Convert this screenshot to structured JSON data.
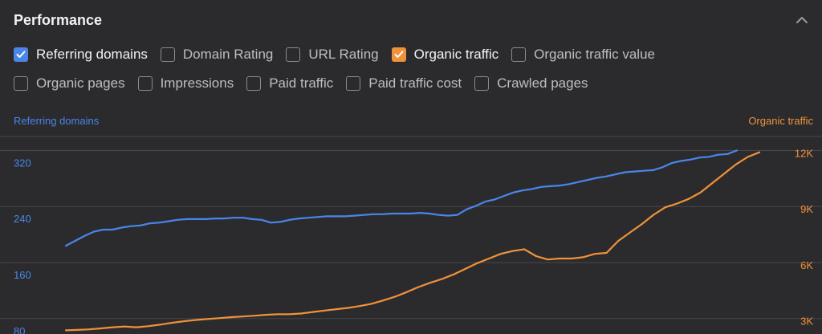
{
  "panel": {
    "title": "Performance"
  },
  "metrics_row1": [
    {
      "label": "Referring domains",
      "checked": true,
      "color": "#4a86e8"
    },
    {
      "label": "Domain Rating",
      "checked": false,
      "color": ""
    },
    {
      "label": "URL Rating",
      "checked": false,
      "color": ""
    },
    {
      "label": "Organic traffic",
      "checked": true,
      "color": "#f0923a"
    },
    {
      "label": "Organic traffic value",
      "checked": false,
      "color": ""
    }
  ],
  "metrics_row2": [
    {
      "label": "Organic pages",
      "checked": false,
      "color": ""
    },
    {
      "label": "Impressions",
      "checked": false,
      "color": ""
    },
    {
      "label": "Paid traffic",
      "checked": false,
      "color": ""
    },
    {
      "label": "Paid traffic cost",
      "checked": false,
      "color": ""
    },
    {
      "label": "Crawled pages",
      "checked": false,
      "color": ""
    }
  ],
  "icons": {
    "collapse": "chevron-up-icon",
    "check": "checkmark-icon"
  },
  "colors": {
    "referring_domains": "#4a86e8",
    "organic_traffic": "#f0923a",
    "grid": "#48484c",
    "background": "#2b2b2e"
  },
  "chart_data": {
    "type": "line",
    "left_axis": {
      "label": "Referring domains",
      "ticks": [
        "320",
        "240",
        "160",
        "80"
      ],
      "tick_values": [
        320,
        240,
        160,
        80
      ],
      "range": [
        58,
        340
      ]
    },
    "right_axis": {
      "label": "Organic traffic",
      "ticks": [
        "12K",
        "9K",
        "6K",
        "3K"
      ],
      "tick_values": [
        12000,
        9000,
        6000,
        3000
      ],
      "range": [
        2200,
        12800
      ]
    },
    "grid": true,
    "series": [
      {
        "name": "Referring domains",
        "axis": "left",
        "color": "#4a86e8",
        "values": [
          184,
          191,
          198,
          204,
          207,
          207,
          210,
          212,
          213,
          216,
          217,
          219,
          221,
          222,
          222,
          222,
          223,
          223,
          224,
          224,
          222,
          221,
          217,
          218,
          221,
          223,
          224,
          225,
          226,
          226,
          226,
          227,
          228,
          229,
          229,
          230,
          230,
          230,
          231,
          230,
          228,
          227,
          228,
          236,
          241,
          247,
          250,
          255,
          260,
          263,
          265,
          268,
          269,
          270,
          272,
          275,
          278,
          281,
          283,
          286,
          289,
          290,
          291,
          292,
          296,
          302,
          305,
          307,
          310,
          311,
          314,
          315,
          320
        ]
      },
      {
        "name": "Organic traffic",
        "axis": "right",
        "color": "#f0923a",
        "values": [
          2400,
          2420,
          2450,
          2500,
          2560,
          2600,
          2560,
          2620,
          2700,
          2800,
          2880,
          2950,
          3000,
          3050,
          3100,
          3140,
          3180,
          3230,
          3260,
          3260,
          3300,
          3380,
          3460,
          3530,
          3600,
          3700,
          3820,
          4000,
          4200,
          4450,
          4720,
          4950,
          5150,
          5400,
          5700,
          6000,
          6250,
          6500,
          6650,
          6750,
          6380,
          6200,
          6250,
          6250,
          6320,
          6500,
          6550,
          7200,
          7650,
          8100,
          8600,
          9000,
          9200,
          9450,
          9800,
          10300,
          10800,
          11300,
          11700,
          11950
        ]
      }
    ]
  }
}
